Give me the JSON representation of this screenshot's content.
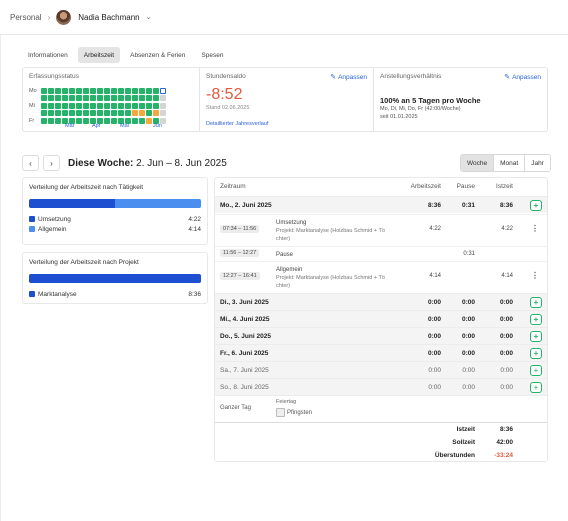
{
  "header": {
    "breadcrumb_root": "Personal",
    "separator": "›",
    "user_name": "Nadia Bachmann",
    "dropdown_icon": "chevron-down-icon"
  },
  "tabs": [
    {
      "label": "Informationen",
      "active": false
    },
    {
      "label": "Arbeitszeit",
      "active": true
    },
    {
      "label": "Absenzen & Ferien",
      "active": false
    },
    {
      "label": "Spesen",
      "active": false
    }
  ],
  "summary": {
    "status": {
      "label": "Erfassungsstatus",
      "days": [
        "Mo",
        "Mi",
        "Fr"
      ],
      "months": [
        "Mär",
        "Apr",
        "Mai",
        "Jun"
      ]
    },
    "saldo": {
      "label": "Stundensaldo",
      "edit_label": "Anpassen",
      "value": "-8:52",
      "date": "Stand 02.06.2025",
      "link": "Detaillierter Jahresverlauf"
    },
    "employment": {
      "label": "Anstellungsverhältnis",
      "edit_label": "Anpassen",
      "main": "100% an 5 Tagen pro Woche",
      "days": "Mo, Di, Mi, Do, Fr (42:00/Woche)",
      "since": "seit 01.01.2025"
    }
  },
  "week": {
    "prev_icon": "chevron-left-icon",
    "next_icon": "chevron-right-icon",
    "label_bold": "Diese Woche:",
    "range": " 2. Jun – 8. Jun 2025",
    "periods": [
      {
        "label": "Woche",
        "active": true
      },
      {
        "label": "Monat",
        "active": false
      },
      {
        "label": "Jahr",
        "active": false
      }
    ]
  },
  "activity_card": {
    "title": "Verteilung der Arbeitszeit nach Tätigkeit",
    "items": [
      {
        "label": "Umsetzung",
        "value": "4:22",
        "color": "#1f4fd1",
        "share": 0.5
      },
      {
        "label": "Allgemein",
        "value": "4:14",
        "color": "#4a8ef0",
        "share": 0.5
      }
    ]
  },
  "project_card": {
    "title": "Verteilung der Arbeitszeit nach Projekt",
    "items": [
      {
        "label": "Marktanalyse",
        "value": "8:36",
        "color": "#1f4fd1",
        "share": 1
      }
    ]
  },
  "table": {
    "headers": {
      "date": "Zeitraum",
      "work": "Arbeitszeit",
      "pause": "Pause",
      "actual": "Istzeit"
    },
    "monday": {
      "label": "Mo., 2. Juni 2025",
      "work": "8:36",
      "pause": "0:31",
      "actual": "8:36"
    },
    "entries": [
      {
        "time": "07:34 – 11:56",
        "title": "Umsetzung",
        "sub1": "Projekt: Marktanalyse (Holzbau Schmid + Tö",
        "sub2": "chter)",
        "work": "4:22",
        "actual": "4:22"
      },
      {
        "time": "11:56 – 12:27",
        "title": "Pause",
        "pause": "0:31"
      },
      {
        "time": "12:27 – 16:41",
        "title": "Allgemein",
        "sub1": "Projekt: Marktanalyse (Holzbau Schmid + Tö",
        "sub2": "chter)",
        "work": "4:14",
        "actual": "4:14"
      }
    ],
    "days": [
      {
        "label": "Di., 3. Juni 2025",
        "work": "0:00",
        "pause": "0:00",
        "actual": "0:00",
        "weekend": false
      },
      {
        "label": "Mi., 4. Juni 2025",
        "work": "0:00",
        "pause": "0:00",
        "actual": "0:00",
        "weekend": false
      },
      {
        "label": "Do., 5. Juni 2025",
        "work": "0:00",
        "pause": "0:00",
        "actual": "0:00",
        "weekend": false
      },
      {
        "label": "Fr., 6. Juni 2025",
        "work": "0:00",
        "pause": "0:00",
        "actual": "0:00",
        "weekend": false
      },
      {
        "label": "Sa., 7. Juni 2025",
        "work": "0:00",
        "pause": "0:00",
        "actual": "0:00",
        "weekend": true
      },
      {
        "label": "So., 8. Juni 2025",
        "work": "0:00",
        "pause": "0:00",
        "actual": "0:00",
        "weekend": true
      }
    ],
    "holiday": {
      "scope": "Ganzer Tag",
      "type": "Feiertag",
      "name": "Pfingsten"
    },
    "totals": [
      {
        "label": "Istzeit",
        "value": "8:36"
      },
      {
        "label": "Sollzeit",
        "value": "42:00"
      },
      {
        "label": "Überstunden",
        "value": "-33:24"
      }
    ]
  }
}
